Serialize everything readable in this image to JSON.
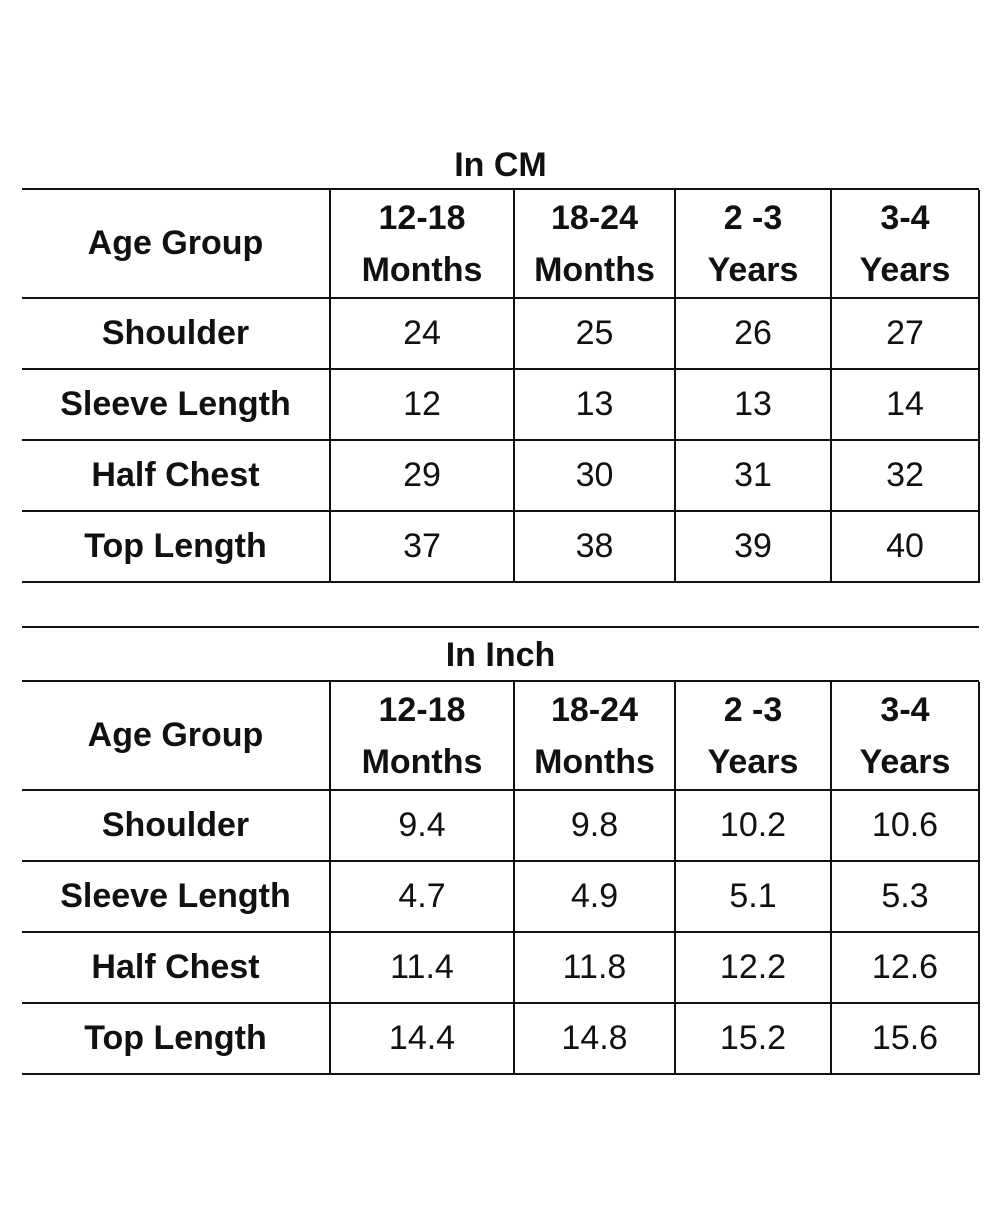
{
  "tables": [
    {
      "title": "In CM",
      "header_label": "Age Group",
      "columns": [
        {
          "line1": "12-18",
          "line2": "Months"
        },
        {
          "line1": "18-24",
          "line2": "Months"
        },
        {
          "line1": "2 -3",
          "line2": "Years"
        },
        {
          "line1": "3-4",
          "line2": "Years"
        }
      ],
      "rows": [
        {
          "label": "Shoulder",
          "values": [
            "24",
            "25",
            "26",
            "27"
          ]
        },
        {
          "label": "Sleeve Length",
          "values": [
            "12",
            "13",
            "13",
            "14"
          ]
        },
        {
          "label": "Half Chest",
          "values": [
            "29",
            "30",
            "31",
            "32"
          ]
        },
        {
          "label": "Top Length",
          "values": [
            "37",
            "38",
            "39",
            "40"
          ]
        }
      ]
    },
    {
      "title": "In Inch",
      "header_label": "Age Group",
      "columns": [
        {
          "line1": "12-18",
          "line2": "Months"
        },
        {
          "line1": "18-24",
          "line2": "Months"
        },
        {
          "line1": "2 -3",
          "line2": "Years"
        },
        {
          "line1": "3-4",
          "line2": "Years"
        }
      ],
      "rows": [
        {
          "label": "Shoulder",
          "values": [
            "9.4",
            "9.8",
            "10.2",
            "10.6"
          ]
        },
        {
          "label": "Sleeve Length",
          "values": [
            "4.7",
            "4.9",
            "5.1",
            "5.3"
          ]
        },
        {
          "label": "Half Chest",
          "values": [
            "11.4",
            "11.8",
            "12.2",
            "12.6"
          ]
        },
        {
          "label": "Top Length",
          "values": [
            "14.4",
            "14.8",
            "15.2",
            "15.6"
          ]
        }
      ]
    }
  ]
}
